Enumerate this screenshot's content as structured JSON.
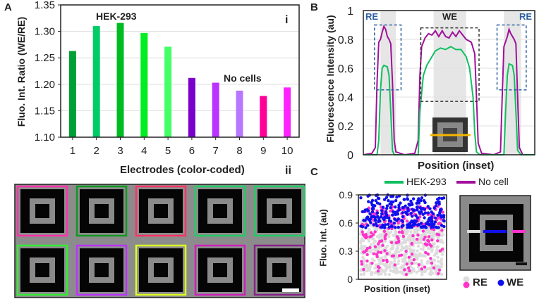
{
  "panels": {
    "a": "A",
    "b": "B",
    "c": "C",
    "a_i": "i",
    "a_ii": "ii"
  },
  "chart_data": [
    {
      "id": "A-i",
      "type": "bar",
      "title": "",
      "xlabel": "Electrodes (color-coded)",
      "ylabel": "Fluo. Int. Ratio (WE/RE)",
      "ylim": [
        1.1,
        1.35
      ],
      "yticks": [
        "1.10",
        "1.15",
        "1.20",
        "1.25",
        "1.30",
        "1.35"
      ],
      "categories": [
        "1",
        "2",
        "3",
        "4",
        "5",
        "6",
        "7",
        "8",
        "9",
        "10"
      ],
      "values": [
        1.263,
        1.31,
        1.316,
        1.297,
        1.271,
        1.212,
        1.203,
        1.188,
        1.178,
        1.194
      ],
      "colors": [
        "#00a035",
        "#00cc66",
        "#00bb22",
        "#00ee22",
        "#44ff66",
        "#7a00cc",
        "#bb33ff",
        "#b877ff",
        "#ff0099",
        "#ff22ff"
      ],
      "annotations": [
        "HEK-293",
        "No cells"
      ],
      "grid": true
    },
    {
      "id": "B",
      "type": "line",
      "xlabel": "Position (inset)",
      "ylabel": "Fluorescence Intensity (au)",
      "ylim": [
        0,
        1
      ],
      "xlim": [
        0,
        100
      ],
      "yticks": [
        "0",
        "0.2",
        "0.4",
        "0.6",
        "0.8",
        "1"
      ],
      "region_labels": [
        "RE",
        "WE",
        "RE"
      ],
      "series": [
        {
          "name": "No cell",
          "color": "#a0109a",
          "points": [
            [
              0,
              0
            ],
            [
              5,
              0.01
            ],
            [
              7,
              0.05
            ],
            [
              8,
              0.5
            ],
            [
              9,
              0.78
            ],
            [
              10,
              0.8
            ],
            [
              11,
              0.85
            ],
            [
              12,
              0.89
            ],
            [
              13,
              0.87
            ],
            [
              14,
              0.82
            ],
            [
              15,
              0.8
            ],
            [
              16,
              0.77
            ],
            [
              17,
              0.5
            ],
            [
              18,
              0.1
            ],
            [
              19,
              0.02
            ],
            [
              24,
              0
            ],
            [
              30,
              0.01
            ],
            [
              32,
              0.1
            ],
            [
              33,
              0.55
            ],
            [
              34,
              0.75
            ],
            [
              36,
              0.81
            ],
            [
              38,
              0.84
            ],
            [
              40,
              0.83
            ],
            [
              42,
              0.86
            ],
            [
              44,
              0.82
            ],
            [
              46,
              0.86
            ],
            [
              48,
              0.82
            ],
            [
              50,
              0.81
            ],
            [
              52,
              0.85
            ],
            [
              54,
              0.82
            ],
            [
              56,
              0.86
            ],
            [
              58,
              0.83
            ],
            [
              60,
              0.8
            ],
            [
              63,
              0.78
            ],
            [
              65,
              0.7
            ],
            [
              66,
              0.4
            ],
            [
              67,
              0.08
            ],
            [
              69,
              0.01
            ],
            [
              76,
              0
            ],
            [
              80,
              0.02
            ],
            [
              81,
              0.4
            ],
            [
              82,
              0.75
            ],
            [
              84,
              0.82
            ],
            [
              85,
              0.87
            ],
            [
              86,
              0.84
            ],
            [
              88,
              0.8
            ],
            [
              89,
              0.77
            ],
            [
              90,
              0.4
            ],
            [
              91,
              0.05
            ],
            [
              93,
              0
            ],
            [
              100,
              0
            ]
          ]
        },
        {
          "name": "HEK-293",
          "color": "#10c060",
          "points": [
            [
              0,
              0
            ],
            [
              8,
              0
            ],
            [
              9,
              0.1
            ],
            [
              10,
              0.45
            ],
            [
              11,
              0.6
            ],
            [
              12,
              0.62
            ],
            [
              14,
              0.61
            ],
            [
              15,
              0.55
            ],
            [
              16,
              0.3
            ],
            [
              17,
              0.03
            ],
            [
              18,
              0
            ],
            [
              32,
              0
            ],
            [
              33,
              0.3
            ],
            [
              35,
              0.55
            ],
            [
              37,
              0.62
            ],
            [
              39,
              0.66
            ],
            [
              42,
              0.72
            ],
            [
              45,
              0.74
            ],
            [
              48,
              0.73
            ],
            [
              51,
              0.75
            ],
            [
              54,
              0.73
            ],
            [
              57,
              0.73
            ],
            [
              60,
              0.68
            ],
            [
              62,
              0.6
            ],
            [
              64,
              0.4
            ],
            [
              65,
              0.15
            ],
            [
              66,
              0.02
            ],
            [
              68,
              0
            ],
            [
              82,
              0
            ],
            [
              83,
              0.3
            ],
            [
              84,
              0.55
            ],
            [
              85,
              0.63
            ],
            [
              87,
              0.62
            ],
            [
              88,
              0.55
            ],
            [
              89,
              0.3
            ],
            [
              90,
              0.03
            ],
            [
              92,
              0
            ],
            [
              100,
              0
            ]
          ]
        }
      ]
    },
    {
      "id": "C",
      "type": "scatter",
      "xlabel": "Position (inset)",
      "ylabel": "Fluo. Int. (au)",
      "ylim": [
        0,
        0.9
      ],
      "yticks": [
        "0",
        "0.3",
        "0.6",
        "0.9"
      ],
      "series": [
        {
          "name": "RE (HEK-293)",
          "color": "#dddddd",
          "range": [
            0.05,
            0.65
          ]
        },
        {
          "name": "RE (No cell)",
          "color": "#ff33cc",
          "range": [
            0.05,
            0.78
          ]
        },
        {
          "name": "WE",
          "color": "#1010ee",
          "range": [
            0.55,
            0.9
          ]
        }
      ],
      "legend": [
        "RE",
        "WE"
      ]
    }
  ],
  "legend_b": {
    "hek": "HEK-293",
    "nocell": "No cell",
    "hek_color": "#10c060",
    "nocell_color": "#a0109a"
  },
  "electrode_grid_colors": [
    "#ff33aa",
    "#119922",
    "#ff3366",
    "#22cc66",
    "#22cc66",
    "#33ee33",
    "#bb33ff",
    "#ddff22",
    "#cc22bb",
    "#882288"
  ]
}
